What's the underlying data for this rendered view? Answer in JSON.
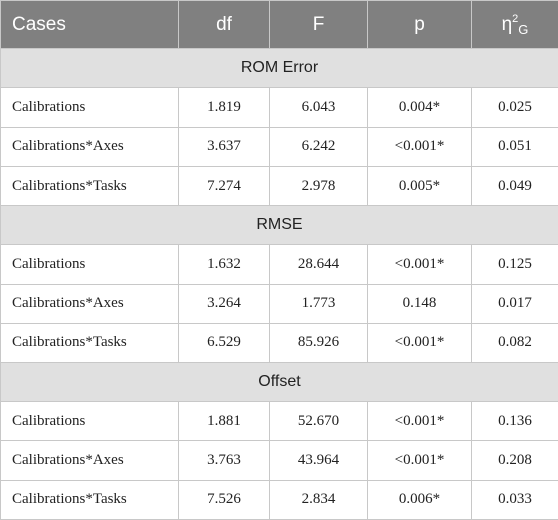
{
  "header": {
    "cases": "Cases",
    "df": "df",
    "F": "F",
    "p": "p",
    "eta_symbol": "η",
    "eta_sup": "2",
    "eta_sub": "G"
  },
  "sections": [
    {
      "title": "ROM Error",
      "rows": [
        {
          "case": "Calibrations",
          "df": "1.819",
          "F": "6.043",
          "p": "0.004*",
          "eta": "0.025"
        },
        {
          "case": "Calibrations*Axes",
          "df": "3.637",
          "F": "6.242",
          "p": "<0.001*",
          "eta": "0.051"
        },
        {
          "case": "Calibrations*Tasks",
          "df": "7.274",
          "F": "2.978",
          "p": "0.005*",
          "eta": "0.049"
        }
      ]
    },
    {
      "title": "RMSE",
      "rows": [
        {
          "case": "Calibrations",
          "df": "1.632",
          "F": "28.644",
          "p": "<0.001*",
          "eta": "0.125"
        },
        {
          "case": "Calibrations*Axes",
          "df": "3.264",
          "F": "1.773",
          "p": "0.148",
          "eta": "0.017"
        },
        {
          "case": "Calibrations*Tasks",
          "df": "6.529",
          "F": "85.926",
          "p": "<0.001*",
          "eta": "0.082"
        }
      ]
    },
    {
      "title": "Offset",
      "rows": [
        {
          "case": "Calibrations",
          "df": "1.881",
          "F": "52.670",
          "p": "<0.001*",
          "eta": "0.136"
        },
        {
          "case": "Calibrations*Axes",
          "df": "3.763",
          "F": "43.964",
          "p": "<0.001*",
          "eta": "0.208"
        },
        {
          "case": "Calibrations*Tasks",
          "df": "7.526",
          "F": "2.834",
          "p": "0.006*",
          "eta": "0.033"
        }
      ]
    }
  ]
}
